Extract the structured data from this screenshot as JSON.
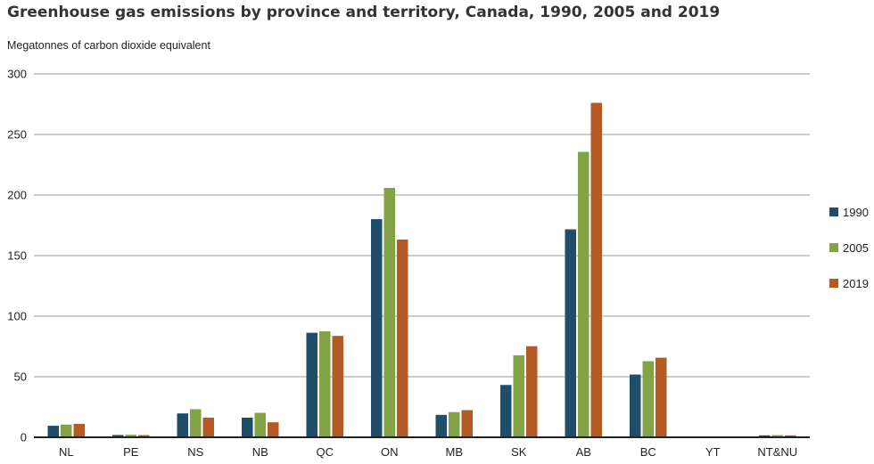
{
  "chart_data": {
    "type": "bar",
    "title": "Greenhouse gas emissions by province and territory, Canada, 1990, 2005 and 2019",
    "ylabel": "Megatonnes of carbon dioxide equivalent",
    "xlabel": "",
    "ylim": [
      0,
      300
    ],
    "yticks": [
      0,
      50,
      100,
      150,
      200,
      250,
      300
    ],
    "grid": true,
    "legend_position": "right",
    "categories": [
      "NL",
      "PE",
      "NS",
      "NB",
      "QC",
      "ON",
      "MB",
      "SK",
      "AB",
      "BC",
      "YT",
      "NT&NU"
    ],
    "series": [
      {
        "name": "1990",
        "color": "#1f4e6b",
        "values": [
          9.5,
          1.9,
          19.7,
          16.2,
          86.3,
          180.1,
          18.5,
          43.2,
          171.7,
          51.8,
          0.5,
          1.6
        ]
      },
      {
        "name": "2005",
        "color": "#82a346",
        "values": [
          10.5,
          2.1,
          23.2,
          20.2,
          87.5,
          205.9,
          20.8,
          67.7,
          235.6,
          62.8,
          0.6,
          1.8
        ]
      },
      {
        "name": "2019",
        "color": "#b35a25",
        "values": [
          11.1,
          1.8,
          16.2,
          12.4,
          83.7,
          163.2,
          22.4,
          75.2,
          276.1,
          65.7,
          0.6,
          1.6
        ]
      }
    ]
  }
}
